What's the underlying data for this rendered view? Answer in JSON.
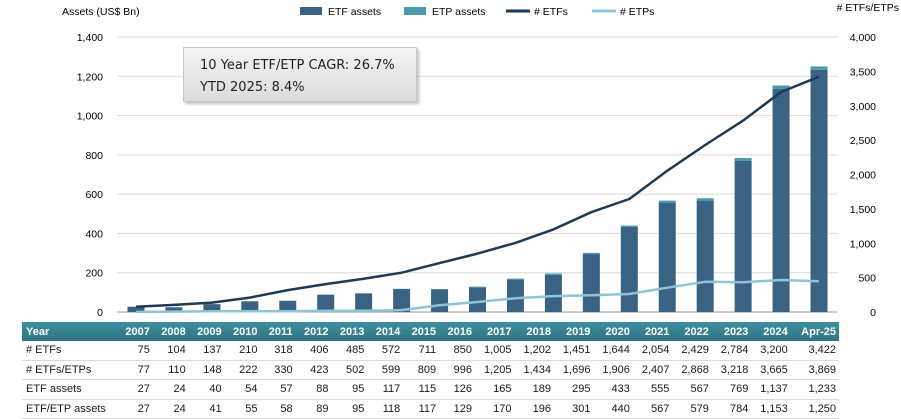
{
  "chart_data": {
    "type": "bar+line",
    "ylabel_left": "Assets (US$ Bn)",
    "ylabel_right": "# ETFs/ETPs",
    "ylim_left": [
      0,
      1400
    ],
    "ylim_right": [
      0,
      4000
    ],
    "left_ticks": [
      "0",
      "200",
      "400",
      "600",
      "800",
      "1,000",
      "1,200",
      "1,400"
    ],
    "right_ticks": [
      "0",
      "500",
      "1,000",
      "1,500",
      "2,000",
      "2,500",
      "3,000",
      "3,500",
      "4,000"
    ],
    "categories": [
      "2007",
      "2008",
      "2009",
      "2010",
      "2011",
      "2012",
      "2013",
      "2014",
      "2015",
      "2016",
      "2017",
      "2018",
      "2019",
      "2020",
      "2021",
      "2022",
      "2023",
      "2024",
      "Apr-25"
    ],
    "series": [
      {
        "name": "ETF assets",
        "kind": "bar",
        "axis": "left",
        "color": "#3a6383",
        "values": [
          27,
          24,
          40,
          54,
          57,
          88,
          95,
          117,
          115,
          126,
          165,
          189,
          295,
          433,
          555,
          567,
          769,
          1137,
          1233
        ]
      },
      {
        "name": "ETP assets",
        "kind": "bar",
        "axis": "left",
        "color": "#4a9aab",
        "values": [
          0,
          0,
          1,
          1,
          1,
          1,
          0,
          1,
          2,
          3,
          5,
          7,
          6,
          7,
          12,
          12,
          15,
          16,
          17
        ]
      },
      {
        "name": "# ETFs",
        "kind": "line",
        "axis": "right",
        "color": "#1f3a56",
        "values": [
          75,
          104,
          137,
          210,
          318,
          406,
          485,
          572,
          711,
          850,
          1005,
          1202,
          1451,
          1644,
          2054,
          2429,
          2784,
          3200,
          3422
        ]
      },
      {
        "name": "# ETPs",
        "kind": "line",
        "axis": "right",
        "color": "#8ec5d6",
        "values": [
          2,
          6,
          11,
          12,
          12,
          17,
          17,
          27,
          98,
          146,
          200,
          232,
          245,
          262,
          353,
          439,
          434,
          465,
          447
        ]
      }
    ],
    "grid": true,
    "legend": "top-center"
  },
  "annotation": {
    "cagr": "10 Year ETF/ETP CAGR: 26.7%",
    "ytd": "YTD 2025: 8.4%"
  },
  "table": {
    "header_label": "Year",
    "years": [
      "2007",
      "2008",
      "2009",
      "2010",
      "2011",
      "2012",
      "2013",
      "2014",
      "2015",
      "2016",
      "2017",
      "2018",
      "2019",
      "2020",
      "2021",
      "2022",
      "2023",
      "2024",
      "Apr-25"
    ],
    "rows": [
      {
        "label": "# ETFs",
        "values": [
          "75",
          "104",
          "137",
          "210",
          "318",
          "406",
          "485",
          "572",
          "711",
          "850",
          "1,005",
          "1,202",
          "1,451",
          "1,644",
          "2,054",
          "2,429",
          "2,784",
          "3,200",
          "3,422"
        ]
      },
      {
        "label": "# ETFs/ETPs",
        "values": [
          "77",
          "110",
          "148",
          "222",
          "330",
          "423",
          "502",
          "599",
          "809",
          "996",
          "1,205",
          "1,434",
          "1,696",
          "1,906",
          "2,407",
          "2,868",
          "3,218",
          "3,665",
          "3,869"
        ]
      },
      {
        "label": "ETF assets",
        "values": [
          "27",
          "24",
          "40",
          "54",
          "57",
          "88",
          "95",
          "117",
          "115",
          "126",
          "165",
          "189",
          "295",
          "433",
          "555",
          "567",
          "769",
          "1,137",
          "1,233"
        ]
      },
      {
        "label": "ETF/ETP assets",
        "values": [
          "27",
          "24",
          "41",
          "55",
          "58",
          "89",
          "95",
          "118",
          "117",
          "129",
          "170",
          "196",
          "301",
          "440",
          "567",
          "579",
          "784",
          "1,153",
          "1,250"
        ]
      }
    ]
  }
}
